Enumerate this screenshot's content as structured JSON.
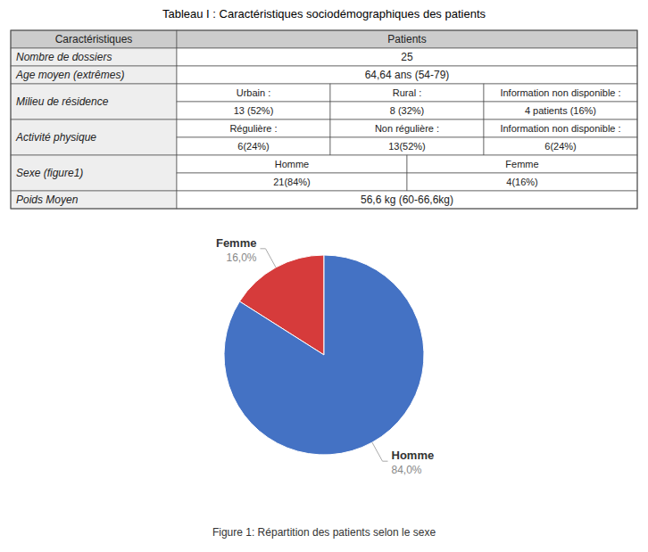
{
  "chart_data": [
    {
      "type": "table",
      "title": "Tableau I : Caractéristiques sociodémographiques des patients",
      "columns": [
        "Caractéristiques",
        "Patients"
      ],
      "rows": [
        {
          "label": "Nombre de dossiers",
          "value": "25"
        },
        {
          "label": "Age moyen (extrêmes)",
          "value": "64,64 ans (54-79)"
        },
        {
          "label": "Milieu de résidence",
          "sub_headers": [
            "Urbain :",
            "Rural :",
            "Information non disponible :"
          ],
          "sub_values": [
            "13 (52%)",
            "8 (32%)",
            "4 patients (16%)"
          ]
        },
        {
          "label": "Activité physique",
          "sub_headers": [
            "Régulière :",
            "Non régulière :",
            "Information non disponible :"
          ],
          "sub_values": [
            "6(24%)",
            "13(52%)",
            "6(24%)"
          ]
        },
        {
          "label": "Sexe (figure1)",
          "sub_headers": [
            "Homme",
            "Femme"
          ],
          "sub_values": [
            "21(84%)",
            "4(16%)"
          ]
        },
        {
          "label": "Poids Moyen",
          "value": "56,6 kg (60-66,6kg)"
        }
      ]
    },
    {
      "type": "pie",
      "title": "Figure 1: Répartition des patients selon le sexe",
      "categories": [
        "Femme",
        "Homme"
      ],
      "values": [
        16.0,
        84.0
      ],
      "value_labels": [
        "16,0%",
        "84,0%"
      ],
      "colors": [
        "#d63b3b",
        "#4472c4"
      ],
      "data_labels": true
    }
  ]
}
